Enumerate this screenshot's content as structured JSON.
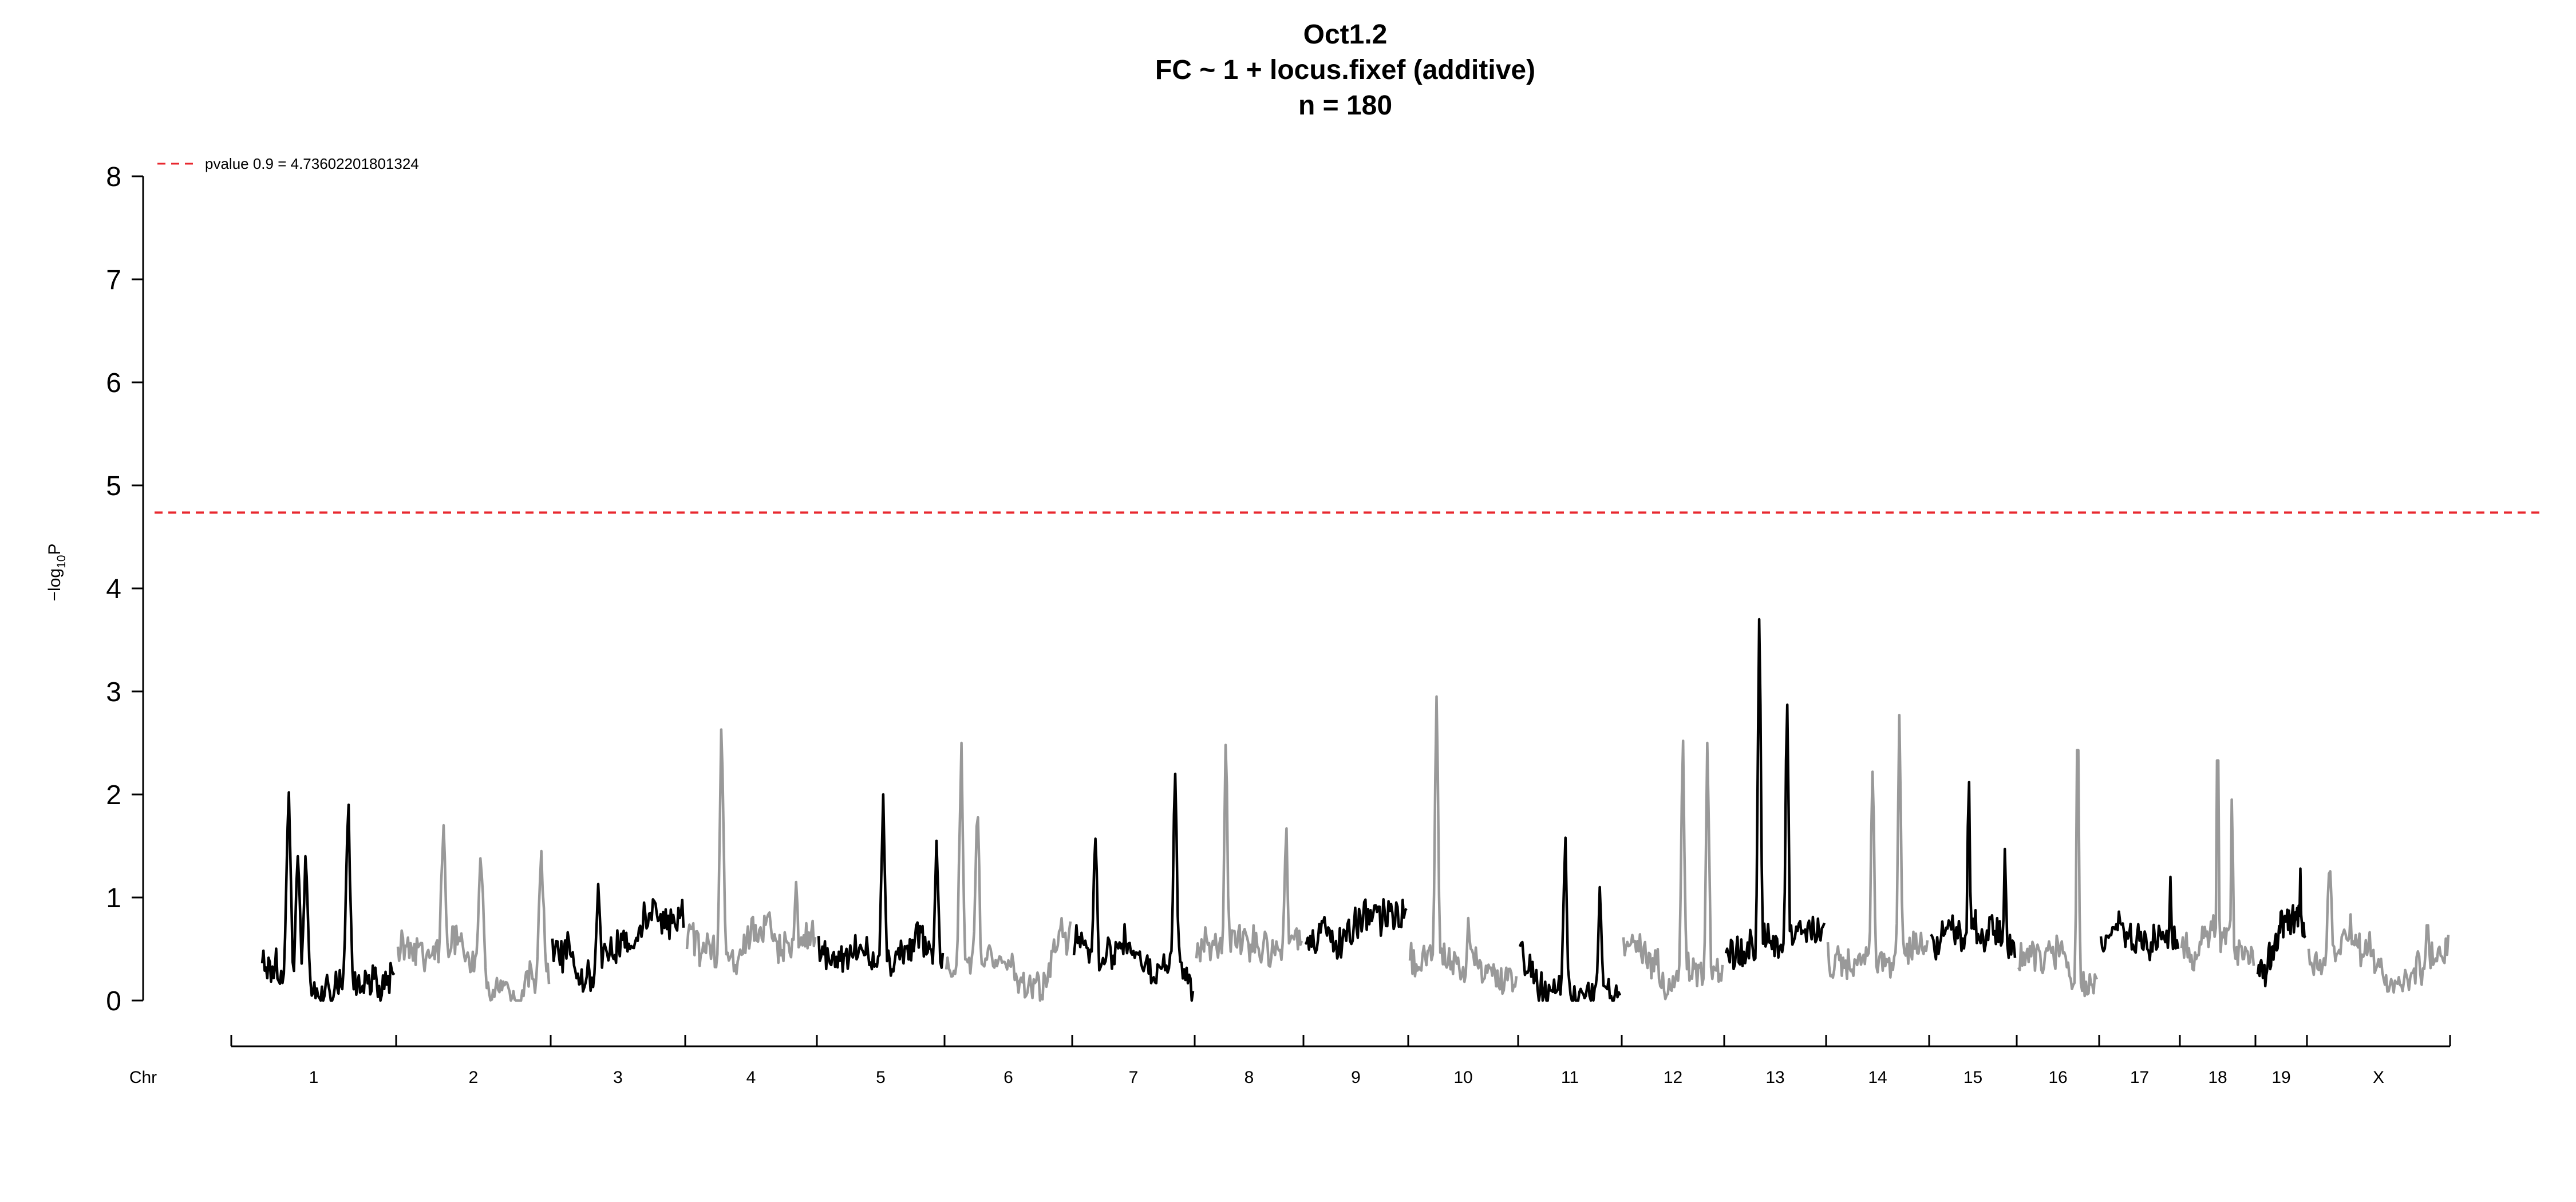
{
  "chart_data": {
    "type": "line",
    "title": "Oct1.2",
    "subtitle": "FC ~ 1 + locus.fixef (additive)",
    "sample_size_label": "n = 180",
    "ylabel": "−log",
    "ylabel_sub": "10",
    "ylabel_suffix": "P",
    "ylim": [
      0,
      8
    ],
    "yticks": [
      0,
      1,
      2,
      3,
      4,
      5,
      6,
      7,
      8
    ],
    "x_axis_label": "Chr",
    "chromosomes": [
      "1",
      "2",
      "3",
      "4",
      "5",
      "6",
      "7",
      "8",
      "9",
      "10",
      "11",
      "12",
      "13",
      "14",
      "15",
      "16",
      "17",
      "18",
      "19",
      "X"
    ],
    "chromosome_colors": [
      "#000000",
      "#999999"
    ],
    "threshold": {
      "value": 4.73602201801324,
      "label": "pvalue 0.9 = 4.73602201801324",
      "color": "#e8282f"
    },
    "legend_position": "top-left",
    "grid": false,
    "peaks": [
      {
        "chr": "1",
        "pos": 0.2,
        "value": 2.02
      },
      {
        "chr": "1",
        "pos": 0.27,
        "value": 1.4
      },
      {
        "chr": "1",
        "pos": 0.33,
        "value": 1.4
      },
      {
        "chr": "1",
        "pos": 0.65,
        "value": 1.9
      },
      {
        "chr": "2",
        "pos": 0.3,
        "value": 1.7
      },
      {
        "chr": "2",
        "pos": 0.55,
        "value": 1.38
      },
      {
        "chr": "2",
        "pos": 0.95,
        "value": 1.45
      },
      {
        "chr": "3",
        "pos": 0.35,
        "value": 1.13
      },
      {
        "chr": "3",
        "pos": 0.7,
        "value": 0.95
      },
      {
        "chr": "4",
        "pos": 0.27,
        "value": 2.63
      },
      {
        "chr": "4",
        "pos": 0.85,
        "value": 1.15
      },
      {
        "chr": "5",
        "pos": 0.52,
        "value": 2.0
      },
      {
        "chr": "5",
        "pos": 0.95,
        "value": 1.55
      },
      {
        "chr": "6",
        "pos": 0.12,
        "value": 2.5
      },
      {
        "chr": "6",
        "pos": 0.25,
        "value": 1.9
      },
      {
        "chr": "7",
        "pos": 0.18,
        "value": 1.57
      },
      {
        "chr": "7",
        "pos": 0.85,
        "value": 2.2
      },
      {
        "chr": "8",
        "pos": 0.28,
        "value": 2.48
      },
      {
        "chr": "8",
        "pos": 0.85,
        "value": 1.67
      },
      {
        "chr": "9",
        "pos": 0.5,
        "value": 0.9
      },
      {
        "chr": "10",
        "pos": 0.25,
        "value": 2.95
      },
      {
        "chr": "10",
        "pos": 0.55,
        "value": 0.8
      },
      {
        "chr": "11",
        "pos": 0.45,
        "value": 1.58
      },
      {
        "chr": "11",
        "pos": 0.8,
        "value": 1.1
      },
      {
        "chr": "12",
        "pos": 0.6,
        "value": 2.52
      },
      {
        "chr": "12",
        "pos": 0.85,
        "value": 2.5
      },
      {
        "chr": "13",
        "pos": 0.34,
        "value": 3.7
      },
      {
        "chr": "13",
        "pos": 0.62,
        "value": 2.87
      },
      {
        "chr": "14",
        "pos": 0.45,
        "value": 2.22
      },
      {
        "chr": "14",
        "pos": 0.72,
        "value": 2.77
      },
      {
        "chr": "15",
        "pos": 0.45,
        "value": 2.12
      },
      {
        "chr": "15",
        "pos": 0.88,
        "value": 1.47
      },
      {
        "chr": "16",
        "pos": 0.75,
        "value": 2.43
      },
      {
        "chr": "17",
        "pos": 0.9,
        "value": 1.2
      },
      {
        "chr": "18",
        "pos": 0.5,
        "value": 2.33
      },
      {
        "chr": "18",
        "pos": 0.7,
        "value": 1.95
      },
      {
        "chr": "19",
        "pos": 0.9,
        "value": 1.28
      },
      {
        "chr": "X",
        "pos": 0.15,
        "value": 1.38
      },
      {
        "chr": "X",
        "pos": 0.85,
        "value": 0.73
      }
    ]
  }
}
